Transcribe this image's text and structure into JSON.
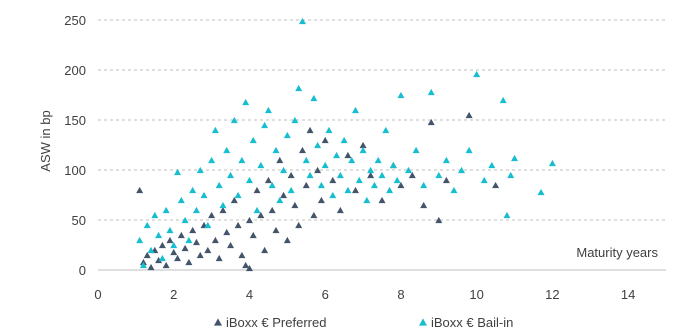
{
  "chart_data": {
    "type": "scatter",
    "xlim": [
      0,
      15
    ],
    "ylim": [
      0,
      250
    ],
    "x_ticks": [
      "0",
      "2",
      "4",
      "6",
      "8",
      "10",
      "12",
      "14"
    ],
    "y_ticks": [
      "0",
      "50",
      "100",
      "150",
      "200",
      "250"
    ],
    "x_tick_values": [
      0,
      2,
      4,
      6,
      8,
      10,
      12,
      14
    ],
    "y_tick_values": [
      0,
      50,
      100,
      150,
      200,
      250
    ],
    "xlabel": "Maturity years",
    "ylabel": "ASW in bp",
    "grid": "horizontal dashed",
    "legend_position": "bottom",
    "series": [
      {
        "name": "iBoxx € Preferred",
        "color": "#44546A",
        "marker": "triangle",
        "points": [
          [
            1.1,
            80
          ],
          [
            1.2,
            8
          ],
          [
            1.3,
            15
          ],
          [
            1.4,
            3
          ],
          [
            1.5,
            20
          ],
          [
            1.6,
            10
          ],
          [
            1.7,
            25
          ],
          [
            1.8,
            5
          ],
          [
            1.9,
            30
          ],
          [
            2.0,
            18
          ],
          [
            2.1,
            12
          ],
          [
            2.2,
            35
          ],
          [
            2.3,
            22
          ],
          [
            2.4,
            8
          ],
          [
            2.5,
            40
          ],
          [
            2.6,
            28
          ],
          [
            2.7,
            15
          ],
          [
            2.8,
            45
          ],
          [
            2.9,
            20
          ],
          [
            3.0,
            55
          ],
          [
            3.1,
            30
          ],
          [
            3.2,
            12
          ],
          [
            3.3,
            60
          ],
          [
            3.4,
            38
          ],
          [
            3.5,
            25
          ],
          [
            3.6,
            70
          ],
          [
            3.7,
            45
          ],
          [
            3.8,
            15
          ],
          [
            3.9,
            5
          ],
          [
            4.0,
            2
          ],
          [
            4.0,
            50
          ],
          [
            4.1,
            35
          ],
          [
            4.2,
            80
          ],
          [
            4.3,
            55
          ],
          [
            4.4,
            20
          ],
          [
            4.5,
            90
          ],
          [
            4.6,
            60
          ],
          [
            4.7,
            40
          ],
          [
            4.8,
            110
          ],
          [
            4.9,
            75
          ],
          [
            5.0,
            30
          ],
          [
            5.1,
            95
          ],
          [
            5.2,
            65
          ],
          [
            5.3,
            45
          ],
          [
            5.4,
            120
          ],
          [
            5.5,
            85
          ],
          [
            5.6,
            140
          ],
          [
            5.7,
            55
          ],
          [
            5.8,
            100
          ],
          [
            5.9,
            70
          ],
          [
            6.0,
            130
          ],
          [
            6.2,
            90
          ],
          [
            6.4,
            60
          ],
          [
            6.6,
            115
          ],
          [
            6.8,
            80
          ],
          [
            7.0,
            125
          ],
          [
            7.2,
            95
          ],
          [
            7.5,
            70
          ],
          [
            7.8,
            105
          ],
          [
            8.0,
            85
          ],
          [
            8.3,
            95
          ],
          [
            8.6,
            65
          ],
          [
            8.8,
            148
          ],
          [
            9.0,
            50
          ],
          [
            9.2,
            90
          ],
          [
            9.8,
            155
          ],
          [
            10.5,
            85
          ]
        ]
      },
      {
        "name": "iBoxx € Bail-in",
        "color": "#17BECF",
        "marker": "triangle",
        "points": [
          [
            1.1,
            30
          ],
          [
            1.2,
            5
          ],
          [
            1.3,
            45
          ],
          [
            1.4,
            20
          ],
          [
            1.5,
            55
          ],
          [
            1.6,
            35
          ],
          [
            1.7,
            12
          ],
          [
            1.8,
            60
          ],
          [
            1.9,
            40
          ],
          [
            2.0,
            25
          ],
          [
            2.1,
            98
          ],
          [
            2.2,
            70
          ],
          [
            2.3,
            50
          ],
          [
            2.4,
            30
          ],
          [
            2.5,
            80
          ],
          [
            2.6,
            60
          ],
          [
            2.7,
            100
          ],
          [
            2.8,
            75
          ],
          [
            2.9,
            45
          ],
          [
            3.0,
            110
          ],
          [
            3.1,
            140
          ],
          [
            3.2,
            85
          ],
          [
            3.3,
            65
          ],
          [
            3.4,
            120
          ],
          [
            3.5,
            95
          ],
          [
            3.6,
            150
          ],
          [
            3.7,
            75
          ],
          [
            3.8,
            110
          ],
          [
            3.9,
            168
          ],
          [
            4.0,
            90
          ],
          [
            4.1,
            130
          ],
          [
            4.2,
            60
          ],
          [
            4.3,
            105
          ],
          [
            4.4,
            145
          ],
          [
            4.5,
            160
          ],
          [
            4.6,
            85
          ],
          [
            4.7,
            120
          ],
          [
            4.8,
            70
          ],
          [
            4.9,
            100
          ],
          [
            5.0,
            135
          ],
          [
            5.1,
            80
          ],
          [
            5.2,
            150
          ],
          [
            5.3,
            182
          ],
          [
            5.4,
            249
          ],
          [
            5.5,
            110
          ],
          [
            5.6,
            95
          ],
          [
            5.7,
            172
          ],
          [
            5.8,
            125
          ],
          [
            5.9,
            85
          ],
          [
            6.0,
            105
          ],
          [
            6.1,
            140
          ],
          [
            6.2,
            75
          ],
          [
            6.3,
            115
          ],
          [
            6.4,
            95
          ],
          [
            6.5,
            130
          ],
          [
            6.6,
            80
          ],
          [
            6.7,
            110
          ],
          [
            6.8,
            160
          ],
          [
            6.9,
            90
          ],
          [
            7.0,
            120
          ],
          [
            7.1,
            70
          ],
          [
            7.2,
            100
          ],
          [
            7.3,
            85
          ],
          [
            7.4,
            110
          ],
          [
            7.5,
            95
          ],
          [
            7.6,
            140
          ],
          [
            7.7,
            80
          ],
          [
            7.8,
            105
          ],
          [
            7.9,
            90
          ],
          [
            8.0,
            175
          ],
          [
            8.2,
            100
          ],
          [
            8.4,
            120
          ],
          [
            8.6,
            85
          ],
          [
            8.8,
            178
          ],
          [
            9.0,
            95
          ],
          [
            9.2,
            110
          ],
          [
            9.4,
            80
          ],
          [
            9.6,
            100
          ],
          [
            9.8,
            120
          ],
          [
            10.0,
            196
          ],
          [
            10.2,
            90
          ],
          [
            10.4,
            105
          ],
          [
            10.7,
            170
          ],
          [
            10.8,
            55
          ],
          [
            10.9,
            95
          ],
          [
            11.0,
            112
          ],
          [
            11.7,
            78
          ],
          [
            12.0,
            107
          ]
        ]
      }
    ]
  }
}
